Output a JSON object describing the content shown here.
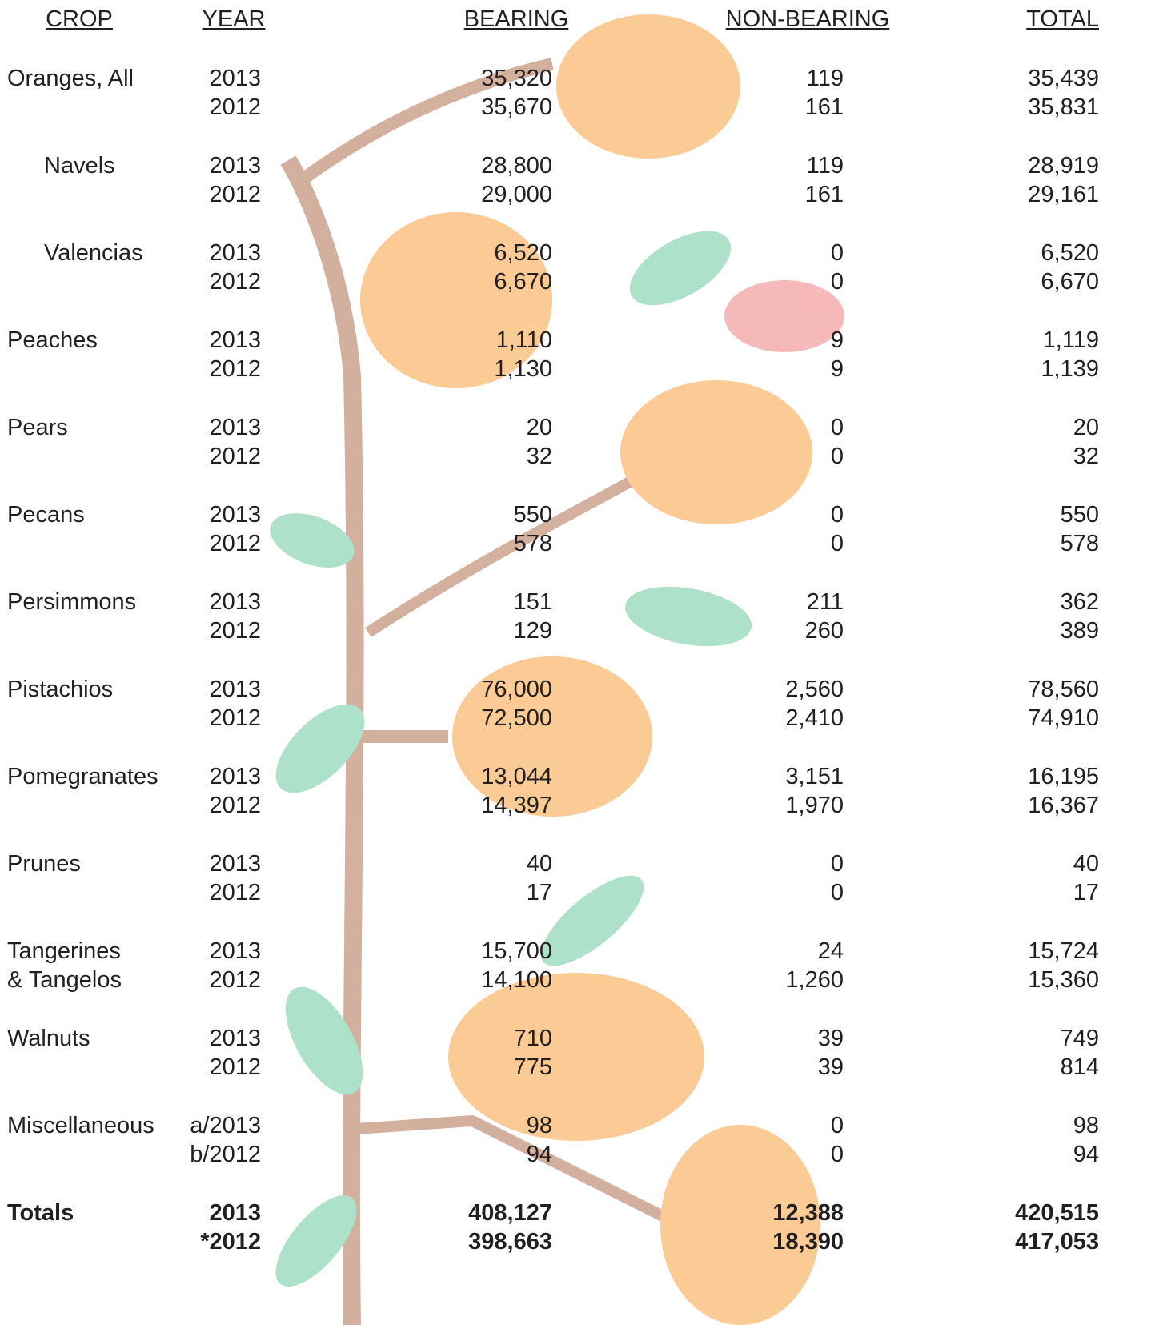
{
  "table": {
    "headers": [
      "CROP",
      "YEAR",
      "BEARING",
      "NON-BEARING",
      "TOTAL"
    ],
    "groups": [
      {
        "crop": [
          "Oranges, All"
        ],
        "rows": [
          [
            "2013",
            "35,320",
            "119",
            "35,439"
          ],
          [
            "2012",
            "35,670",
            "161",
            "35,831"
          ]
        ]
      },
      {
        "crop": [
          "Navels"
        ],
        "indent": true,
        "rows": [
          [
            "2013",
            "28,800",
            "119",
            "28,919"
          ],
          [
            "2012",
            "29,000",
            "161",
            "29,161"
          ]
        ]
      },
      {
        "crop": [
          "Valencias"
        ],
        "indent": true,
        "rows": [
          [
            "2013",
            "6,520",
            "0",
            "6,520"
          ],
          [
            "2012",
            "6,670",
            "0",
            "6,670"
          ]
        ]
      },
      {
        "crop": [
          "Peaches"
        ],
        "rows": [
          [
            "2013",
            "1,110",
            "9",
            "1,119"
          ],
          [
            "2012",
            "1,130",
            "9",
            "1,139"
          ]
        ]
      },
      {
        "crop": [
          "Pears"
        ],
        "rows": [
          [
            "2013",
            "20",
            "0",
            "20"
          ],
          [
            "2012",
            "32",
            "0",
            "32"
          ]
        ]
      },
      {
        "crop": [
          "Pecans"
        ],
        "rows": [
          [
            "2013",
            "550",
            "0",
            "550"
          ],
          [
            "2012",
            "578",
            "0",
            "578"
          ]
        ]
      },
      {
        "crop": [
          "Persimmons"
        ],
        "rows": [
          [
            "2013",
            "151",
            "211",
            "362"
          ],
          [
            "2012",
            "129",
            "260",
            "389"
          ]
        ]
      },
      {
        "crop": [
          "Pistachios"
        ],
        "rows": [
          [
            "2013",
            "76,000",
            "2,560",
            "78,560"
          ],
          [
            "2012",
            "72,500",
            "2,410",
            "74,910"
          ]
        ]
      },
      {
        "crop": [
          "Pomegranates"
        ],
        "rows": [
          [
            "2013",
            "13,044",
            "3,151",
            "16,195"
          ],
          [
            "2012",
            "14,397",
            "1,970",
            "16,367"
          ]
        ]
      },
      {
        "crop": [
          "Prunes"
        ],
        "rows": [
          [
            "2013",
            "40",
            "0",
            "40"
          ],
          [
            "2012",
            "17",
            "0",
            "17"
          ]
        ]
      },
      {
        "crop": [
          "Tangerines",
          "& Tangelos"
        ],
        "rows": [
          [
            "2013",
            "15,700",
            "24",
            "15,724"
          ],
          [
            "2012",
            "14,100",
            "1,260",
            "15,360"
          ]
        ]
      },
      {
        "crop": [
          "Walnuts"
        ],
        "rows": [
          [
            "2013",
            "710",
            "39",
            "749"
          ],
          [
            "2012",
            "775",
            "39",
            "814"
          ]
        ]
      },
      {
        "crop": [
          "Miscellaneous"
        ],
        "rows": [
          [
            "a/2013",
            "98",
            "0",
            "98"
          ],
          [
            "b/2012",
            "94",
            "0",
            "94"
          ]
        ]
      },
      {
        "crop": [
          "Totals"
        ],
        "bold": true,
        "rows": [
          [
            "2013",
            "408,127",
            "12,388",
            "420,515"
          ],
          [
            "*2012",
            "398,663",
            "18,390",
            "417,053"
          ]
        ]
      }
    ]
  }
}
